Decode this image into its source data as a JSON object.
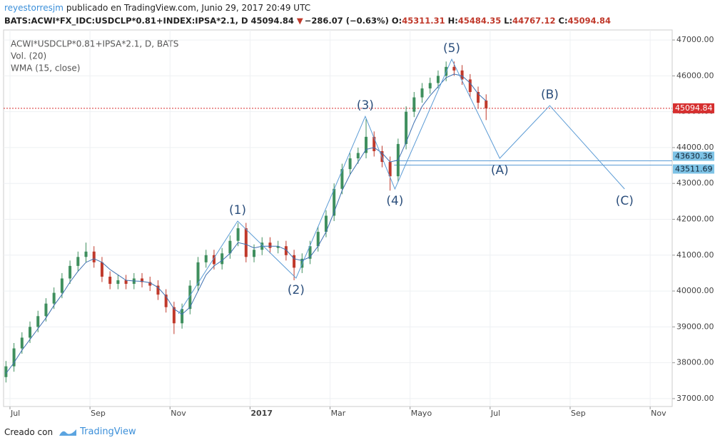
{
  "header": {
    "author": "reyestorresjm",
    "published": "publicado en TradingView.com, Junio 29, 2017 20:49 UTC",
    "symbol": "BATS:ACWI*FX_IDC:USDCLP*0.81+INDEX:IPSA*2.1, D",
    "last": 45094.84,
    "arrow": "▼",
    "change": "−286.07 (−0.63%)",
    "open_label": "O:",
    "open": 45311.31,
    "high_label": "H:",
    "high": 45484.35,
    "low_label": "L:",
    "low": 44767.12,
    "close_label": "C:",
    "close": 45094.84
  },
  "footer": {
    "created": "Creado con",
    "brand": "TradingView"
  },
  "chart_data": {
    "type": "candlestick",
    "legend": [
      "ACWI*USDCLP*0.81+IPSA*2.1, D, BATS",
      "Vol. (20)",
      "WMA (15, close)"
    ],
    "xlim": [
      -0.16,
      16.55
    ],
    "ylim": [
      36780,
      47280
    ],
    "xticks": [
      {
        "value": 0,
        "label": "Jul"
      },
      {
        "value": 2,
        "label": "Sep"
      },
      {
        "value": 4,
        "label": "Nov"
      },
      {
        "value": 6,
        "label": "2017"
      },
      {
        "value": 8,
        "label": "Mar"
      },
      {
        "value": 10,
        "label": "Mayo"
      },
      {
        "value": 12,
        "label": "Jul"
      },
      {
        "value": 14,
        "label": "Sep"
      },
      {
        "value": 16,
        "label": "Nov"
      }
    ],
    "yticks": [
      {
        "value": 37000,
        "label": "37000.00"
      },
      {
        "value": 38000,
        "label": "38000.00"
      },
      {
        "value": 39000,
        "label": "39000.00"
      },
      {
        "value": 40000,
        "label": "40000.00"
      },
      {
        "value": 41000,
        "label": "41000.00"
      },
      {
        "value": 42000,
        "label": "42000.00"
      },
      {
        "value": 43000,
        "label": "43000.00"
      },
      {
        "value": 44000,
        "label": "44000.00"
      },
      {
        "value": 45000,
        "label": "45000.00"
      },
      {
        "value": 46000,
        "label": "46000.00"
      },
      {
        "value": 47000,
        "label": "47000.00"
      }
    ],
    "grid": true,
    "up_color": "#3f8f5e",
    "down_color": "#c0392b",
    "x": [
      -0.1,
      0.1,
      0.3,
      0.5,
      0.7,
      0.9,
      1.1,
      1.3,
      1.5,
      1.7,
      1.9,
      2.1,
      2.3,
      2.5,
      2.7,
      2.9,
      3.1,
      3.3,
      3.5,
      3.7,
      3.9,
      4.1,
      4.3,
      4.5,
      4.7,
      4.9,
      5.1,
      5.3,
      5.5,
      5.7,
      5.9,
      6.1,
      6.3,
      6.5,
      6.7,
      6.9,
      7.1,
      7.3,
      7.5,
      7.7,
      7.9,
      8.1,
      8.3,
      8.5,
      8.7,
      8.9,
      9.1,
      9.3,
      9.5,
      9.7,
      9.9,
      10.1,
      10.3,
      10.5,
      10.7,
      10.9,
      11.1,
      11.3,
      11.5,
      11.7,
      11.9
    ],
    "open": [
      37600,
      37900,
      38400,
      38700,
      39000,
      39300,
      39650,
      39950,
      40350,
      40700,
      40950,
      41100,
      40800,
      40400,
      40200,
      40300,
      40200,
      40350,
      40250,
      40150,
      39900,
      39550,
      39100,
      39500,
      40150,
      40800,
      41000,
      40750,
      41050,
      41400,
      41750,
      40950,
      41150,
      41350,
      41200,
      41250,
      41000,
      40650,
      40900,
      41250,
      41650,
      42100,
      42850,
      43400,
      43700,
      43850,
      44300,
      43900,
      43600,
      43200,
      44100,
      45000,
      45400,
      45650,
      45800,
      46000,
      46250,
      46150,
      45900,
      45550,
      45311.31
    ],
    "high": [
      38050,
      38550,
      38850,
      39150,
      39450,
      39800,
      40100,
      40500,
      40850,
      41100,
      41350,
      41250,
      40950,
      40550,
      40450,
      40450,
      40500,
      40500,
      40400,
      40300,
      40050,
      39700,
      39650,
      40300,
      40950,
      41150,
      41150,
      41200,
      41550,
      41900,
      41900,
      41300,
      41500,
      41500,
      41400,
      41400,
      41150,
      41050,
      41400,
      41800,
      42250,
      43000,
      43550,
      43850,
      44000,
      44800,
      44450,
      44050,
      43750,
      44250,
      45150,
      45550,
      45800,
      45950,
      46150,
      46400,
      46400,
      46300,
      46050,
      45700,
      45484.35
    ],
    "low": [
      37450,
      37750,
      38250,
      38550,
      38850,
      39150,
      39500,
      39800,
      40200,
      40550,
      40800,
      40650,
      40250,
      40050,
      40050,
      40050,
      40050,
      40100,
      40000,
      39750,
      39400,
      38800,
      38950,
      39350,
      40000,
      40650,
      40600,
      40600,
      40900,
      41250,
      40800,
      40800,
      41000,
      41050,
      41050,
      40850,
      40300,
      40500,
      40750,
      41100,
      41500,
      41950,
      42700,
      43250,
      43550,
      43700,
      43750,
      43450,
      42800,
      43050,
      43950,
      44850,
      45250,
      45500,
      45650,
      45850,
      46000,
      45750,
      45400,
      45100,
      44767.12
    ],
    "close": [
      37900,
      38400,
      38700,
      39000,
      39300,
      39650,
      39950,
      40350,
      40700,
      40950,
      41100,
      40800,
      40400,
      40200,
      40300,
      40200,
      40350,
      40250,
      40150,
      39900,
      39550,
      39100,
      39500,
      40150,
      40800,
      41000,
      40750,
      41050,
      41400,
      41750,
      40950,
      41150,
      41350,
      41200,
      41250,
      41000,
      40650,
      40900,
      41250,
      41650,
      42100,
      42850,
      43400,
      43700,
      43850,
      44300,
      43900,
      43600,
      43200,
      44100,
      45000,
      45400,
      45650,
      45800,
      46000,
      46250,
      46150,
      45900,
      45550,
      45250,
      45094.84
    ],
    "wma": {
      "color": "#3d6fb0",
      "values": [
        37700,
        38000,
        38350,
        38650,
        38950,
        39250,
        39600,
        39900,
        40250,
        40550,
        40800,
        40900,
        40800,
        40600,
        40450,
        40300,
        40280,
        40270,
        40230,
        40100,
        39850,
        39500,
        39350,
        39550,
        40000,
        40450,
        40700,
        40850,
        41050,
        41350,
        41300,
        41200,
        41250,
        41250,
        41250,
        41150,
        40900,
        40850,
        40950,
        41250,
        41650,
        42200,
        42800,
        43250,
        43600,
        43950,
        44000,
        43850,
        43600,
        43650,
        44150,
        44700,
        45150,
        45450,
        45700,
        45950,
        46050,
        46000,
        45800,
        45500,
        45300
      ]
    },
    "wave": {
      "color": "#5b9bd5",
      "x": [
        4.21,
        5.69,
        7.15,
        8.88,
        9.62,
        11.04,
        12.24,
        13.49,
        15.36
      ],
      "y": [
        39366,
        41950,
        40360,
        44870,
        42845,
        46463,
        43700,
        45171,
        42845
      ],
      "labels": [
        null,
        "(1)",
        "(2)",
        "(3)",
        "(4)",
        "(5)",
        "(A)",
        "(B)",
        "(C)"
      ]
    },
    "levels": [
      {
        "value": 43630.36,
        "x_start": 9.6,
        "color": "#5b9bd5"
      },
      {
        "value": 43511.69,
        "x_start": 9.6,
        "color": "#5b9bd5"
      }
    ],
    "last_price": {
      "value": 45094.84,
      "color": "#d62f2f"
    }
  }
}
